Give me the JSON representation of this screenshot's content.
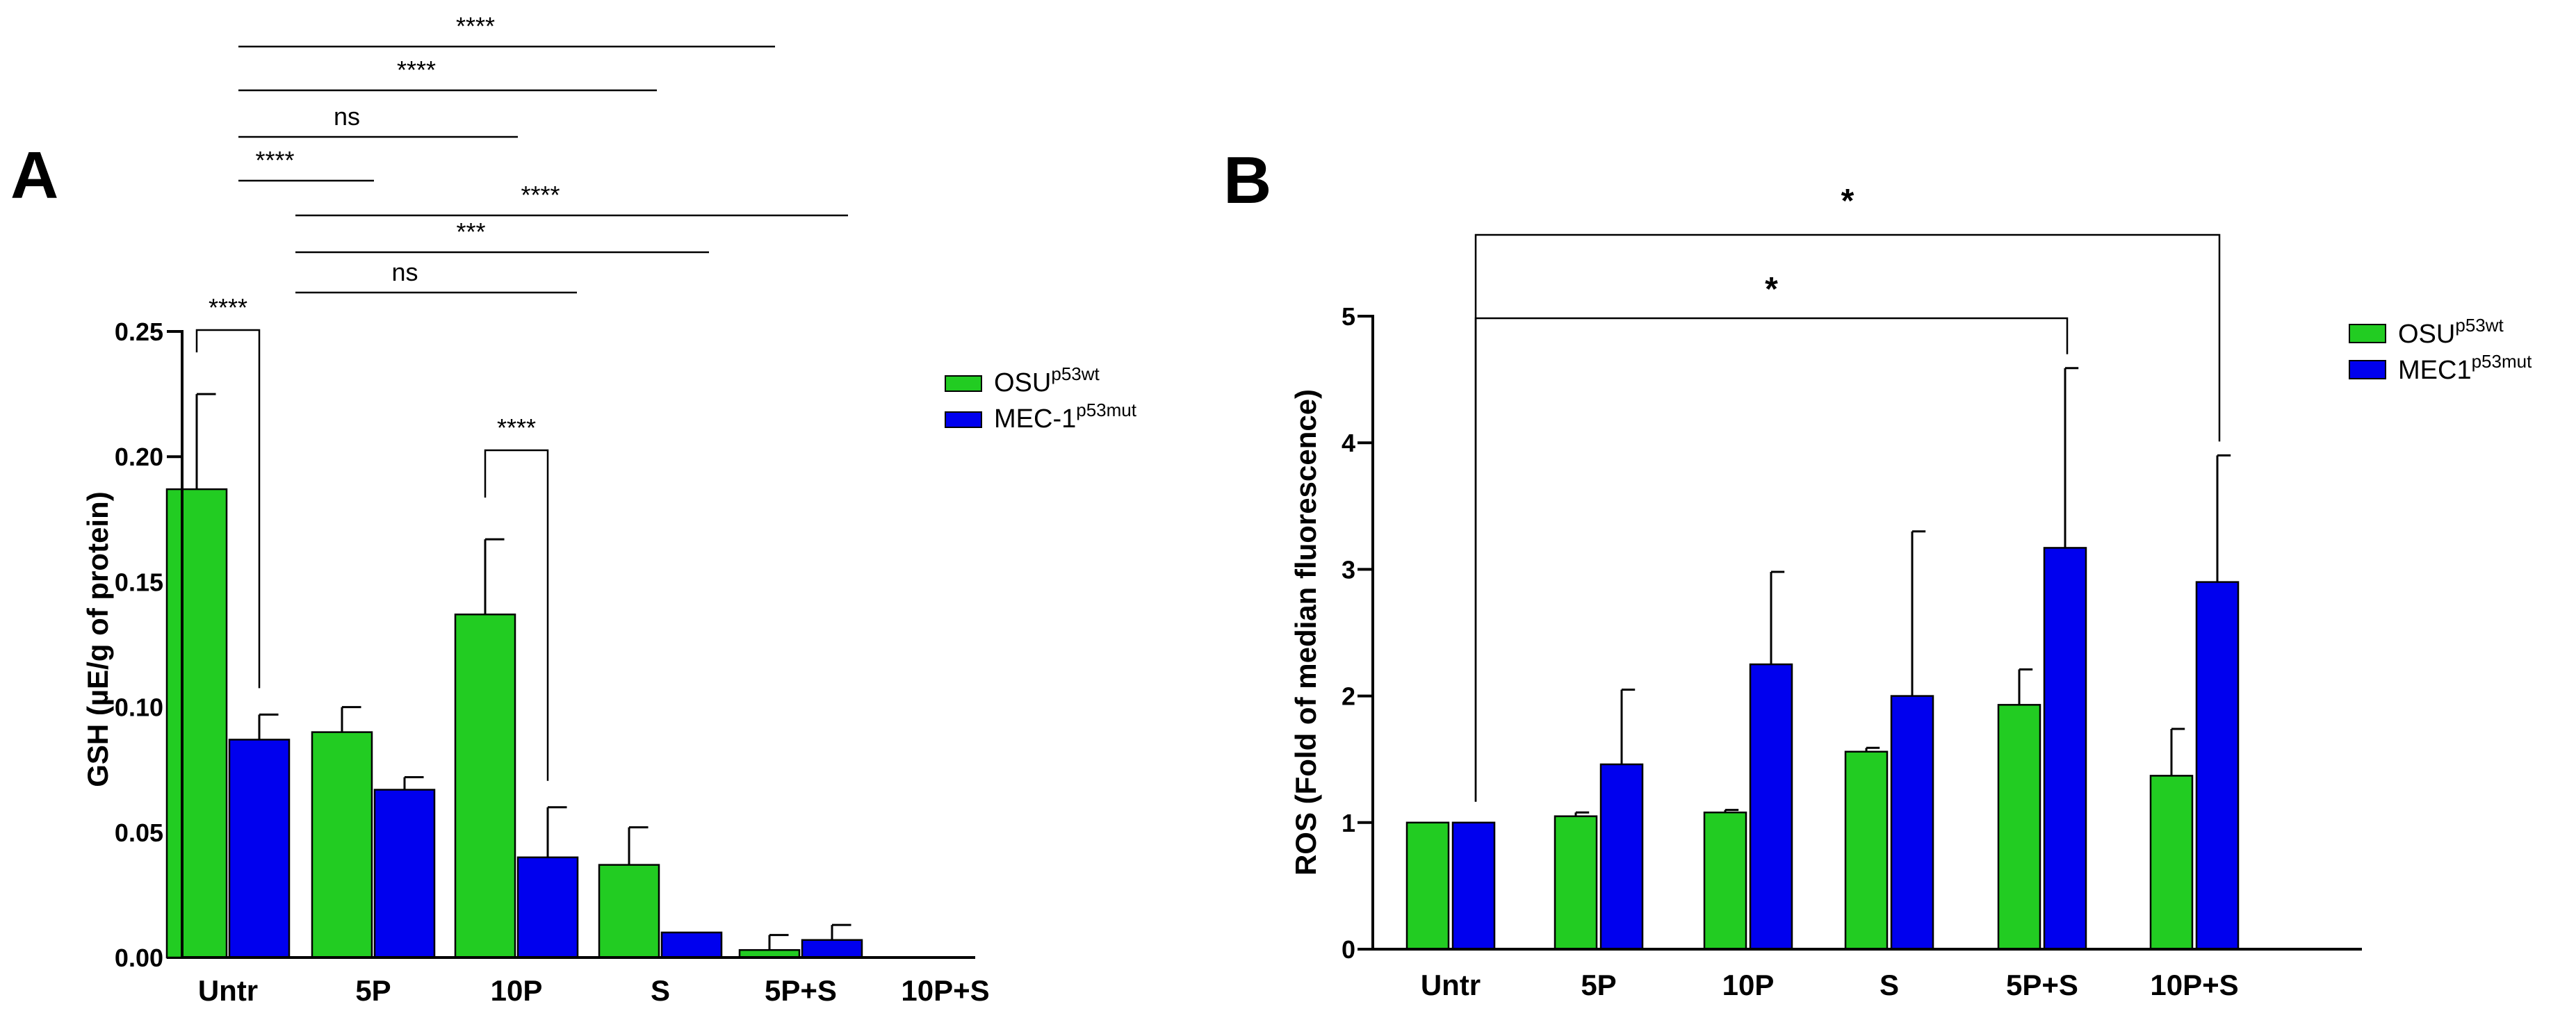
{
  "chart_data": [
    {
      "panel": "A",
      "type": "bar",
      "title": "",
      "xlabel": "",
      "ylabel": "GSH (µE/g of protein)",
      "ylim": [
        0,
        0.25
      ],
      "yticks": [
        "0.00",
        "0.05",
        "0.10",
        "0.15",
        "0.20",
        "0.25"
      ],
      "yticks_values": [
        0,
        0.05,
        0.1,
        0.15,
        0.2,
        0.25
      ],
      "categories": [
        "Untr",
        "5P",
        "10P",
        "S",
        "5P+S",
        "10P+S"
      ],
      "series": [
        {
          "name": "OSU",
          "sup": "p53wt",
          "color": "#22cc22",
          "values": [
            0.187,
            0.09,
            0.137,
            0.037,
            0.003,
            0.0
          ],
          "errors": [
            0.038,
            0.01,
            0.03,
            0.015,
            0.006,
            0.0
          ]
        },
        {
          "name": "MEC-1",
          "sup": "p53mut",
          "color": "#0000ee",
          "values": [
            0.087,
            0.067,
            0.04,
            0.01,
            0.007,
            0.0
          ],
          "errors": [
            0.01,
            0.005,
            0.02,
            0.0,
            0.006,
            0.0
          ]
        }
      ],
      "annotations": [
        {
          "label": "****",
          "type": "top"
        },
        {
          "label": "****",
          "type": "top"
        },
        {
          "label": "ns",
          "type": "top"
        },
        {
          "label": "****",
          "type": "top"
        },
        {
          "label": "****",
          "type": "top"
        },
        {
          "label": "***",
          "type": "top"
        },
        {
          "label": "ns",
          "type": "top"
        },
        {
          "label": "****",
          "type": "pair"
        },
        {
          "label": "****",
          "type": "pair"
        }
      ],
      "legend_position": "top-right"
    },
    {
      "panel": "B",
      "type": "bar",
      "title": "",
      "xlabel": "",
      "ylabel": "ROS (Fold of median fluorescence)",
      "ylim": [
        0,
        5
      ],
      "yticks": [
        "0",
        "1",
        "2",
        "3",
        "4",
        "5"
      ],
      "yticks_values": [
        0,
        1,
        2,
        3,
        4,
        5
      ],
      "categories": [
        "Untr",
        "5P",
        "10P",
        "S",
        "5P+S",
        "10P+S"
      ],
      "series": [
        {
          "name": "OSU",
          "sup": "p53wt",
          "color": "#22cc22",
          "values": [
            1.0,
            1.05,
            1.08,
            1.56,
            1.93,
            1.37
          ],
          "errors": [
            0.0,
            0.03,
            0.02,
            0.03,
            0.28,
            0.37
          ]
        },
        {
          "name": "MEC1",
          "sup": "p53mut",
          "color": "#0000ee",
          "values": [
            1.0,
            1.46,
            2.25,
            2.0,
            3.17,
            2.9
          ],
          "errors": [
            0.0,
            0.59,
            0.73,
            1.3,
            1.42,
            1.0
          ]
        }
      ],
      "annotations": [
        {
          "label": "*",
          "type": "top"
        },
        {
          "label": "*",
          "type": "top"
        }
      ],
      "legend_position": "top-right"
    }
  ]
}
